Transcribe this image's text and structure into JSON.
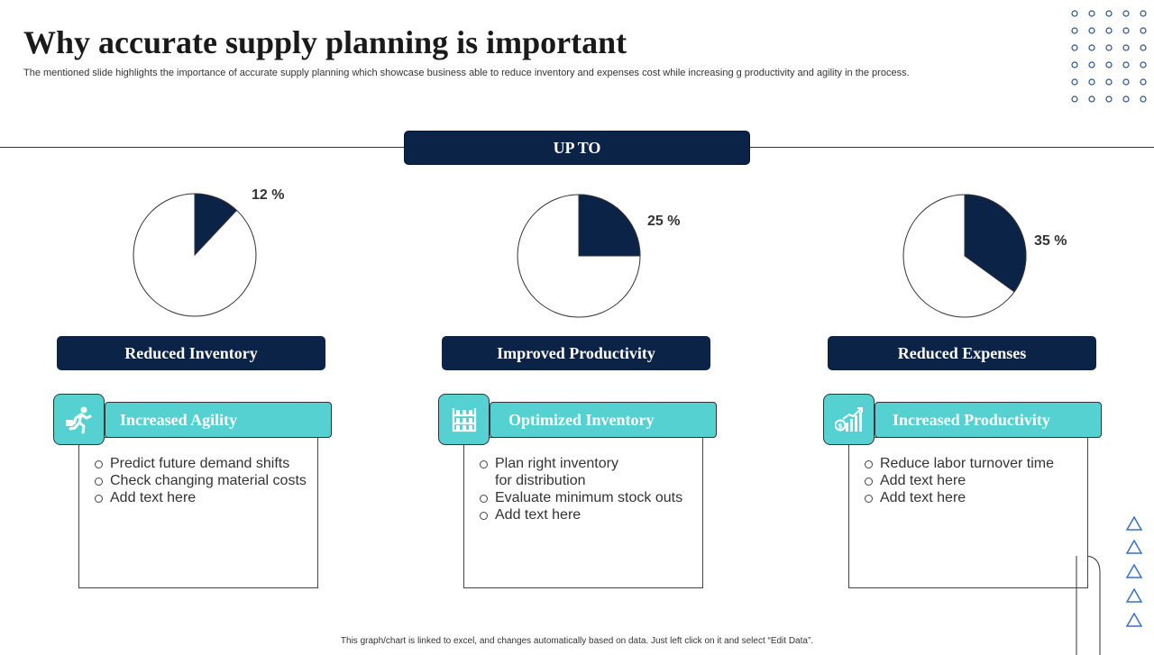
{
  "header": {
    "title": "Why accurate supply planning is important",
    "subtitle": "The mentioned slide highlights the importance of accurate supply planning which showcase business able to reduce inventory and expenses cost while increasing g productivity and agility in the process."
  },
  "banner": {
    "label": "UP TO"
  },
  "colors": {
    "navy": "#0b2346",
    "teal": "#56d1d1",
    "accent_blue": "#3a6fc2"
  },
  "chart_data": [
    {
      "type": "pie",
      "values": [
        12,
        88
      ],
      "data_label": "12 %"
    },
    {
      "type": "pie",
      "values": [
        25,
        75
      ],
      "data_label": "25 %"
    },
    {
      "type": "pie",
      "values": [
        35,
        65
      ],
      "data_label": "35 %"
    }
  ],
  "cards": [
    {
      "category": "Reduced Inventory",
      "heading": "Increased  Agility",
      "icon": "running-person-icon",
      "bullets": [
        "Predict future  demand shifts",
        "Check changing material costs",
        "Add text here"
      ]
    },
    {
      "category": "Improved Productivity",
      "heading": "Optimized Inventory",
      "icon": "warehouse-shelves-icon",
      "bullets": [
        "Plan right inventory",
        "for distribution",
        "Evaluate minimum stock outs",
        "Add text here"
      ]
    },
    {
      "category": "Reduced Expenses",
      "heading": "Increased Productivity",
      "icon": "growth-chart-money-icon",
      "bullets": [
        "Reduce labor turnover time",
        "Add text here",
        "Add text here"
      ]
    }
  ],
  "footer": {
    "note": "This graph/chart is linked to excel, and changes automatically based on data. Just left click on it and select “Edit Data”."
  }
}
